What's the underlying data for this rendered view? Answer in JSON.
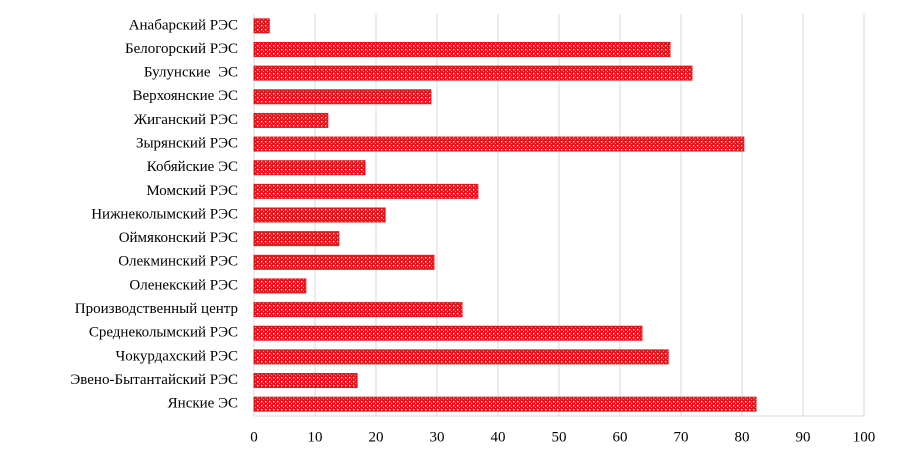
{
  "chart_data": {
    "type": "bar",
    "orientation": "horizontal",
    "categories": [
      "Анабарский РЭС",
      "Белогорский РЭС",
      "Булунские  ЭС",
      "Верхоянские ЭС",
      "Жиганский РЭС",
      "Зырянский РЭС",
      "Кобяйские ЭС",
      "Момский РЭС",
      "Нижнеколымский РЭС",
      "Оймяконский РЭС",
      "Олекминский РЭС",
      "Оленекский РЭС",
      "Производственный центр",
      "Среднеколымский РЭС",
      "Чокурдахский РЭС",
      "Эвено-Бытантайский РЭС",
      "Янские ЭС"
    ],
    "values": [
      2.5,
      68.2,
      71.8,
      29.0,
      12.1,
      80.3,
      18.2,
      36.7,
      21.5,
      13.9,
      29.5,
      8.5,
      34.1,
      63.6,
      67.9,
      16.9,
      82.3
    ],
    "color": "#e8141c",
    "xlim": [
      0,
      100
    ],
    "xticks": [
      0,
      10,
      20,
      30,
      40,
      50,
      60,
      70,
      80,
      90,
      100
    ],
    "grid": true
  }
}
